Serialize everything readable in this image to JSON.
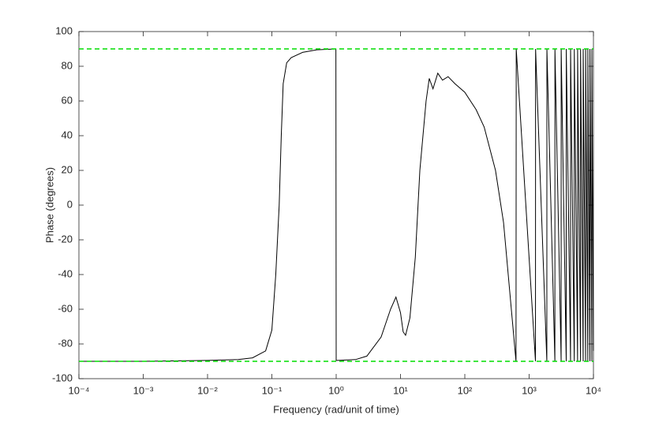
{
  "chart_data": {
    "type": "line",
    "xlabel": "Frequency (rad/unit of time)",
    "ylabel": "Phase (degrees)",
    "xscale": "log",
    "xlim": [
      0.0001,
      10000
    ],
    "xticks": [
      {
        "value": 0.0001,
        "label": "10⁻⁴"
      },
      {
        "value": 0.001,
        "label": "10⁻³"
      },
      {
        "value": 0.01,
        "label": "10⁻²"
      },
      {
        "value": 0.1,
        "label": "10⁻¹"
      },
      {
        "value": 1,
        "label": "10⁰"
      },
      {
        "value": 10,
        "label": "10¹"
      },
      {
        "value": 100,
        "label": "10²"
      },
      {
        "value": 1000,
        "label": "10³"
      },
      {
        "value": 10000,
        "label": "10⁴"
      }
    ],
    "ylim": [
      -100,
      100
    ],
    "yticks": [
      -100,
      -80,
      -60,
      -40,
      -20,
      0,
      20,
      40,
      60,
      80,
      100
    ],
    "grid": false,
    "series": [
      {
        "color": "#000000",
        "dash": false,
        "x": [
          0.0001,
          0.001,
          0.01,
          0.03,
          0.05,
          0.08,
          0.1,
          0.115,
          0.13,
          0.14,
          0.15,
          0.17,
          0.2,
          0.3,
          0.5,
          0.99,
          1.0,
          1.05,
          2,
          3,
          5,
          7,
          8.5,
          10,
          11,
          12,
          14,
          17,
          20,
          25,
          28,
          32,
          38,
          45,
          55,
          70,
          100,
          150,
          200,
          300,
          400,
          500,
          625,
          630,
          1255,
          1260,
          1885,
          1890,
          2515,
          2520,
          3145,
          3150,
          3775,
          3780,
          4405,
          4410,
          5035,
          5040,
          5665,
          5670,
          6295,
          6300,
          6925,
          6930,
          7555,
          7560,
          8185,
          8190,
          8815,
          8820,
          9445,
          9450,
          10000
        ],
        "values": [
          -90,
          -90,
          -89.5,
          -89,
          -88,
          -84,
          -72,
          -40,
          0,
          40,
          70,
          82,
          85,
          88,
          89.5,
          90,
          -89.5,
          -89.5,
          -89,
          -87,
          -76,
          -60,
          -53,
          -62,
          -73,
          -75,
          -65,
          -30,
          20,
          60,
          73,
          67,
          76,
          72,
          74,
          70,
          65,
          55,
          45,
          20,
          -10,
          -50,
          -90,
          90,
          -90,
          90,
          -90,
          90,
          -90,
          90,
          -90,
          90,
          -90,
          90,
          -90,
          90,
          -90,
          90,
          -90,
          90,
          -90,
          90,
          -90,
          90,
          -90,
          90,
          -90,
          90,
          -90,
          90,
          -90,
          90,
          -84
        ]
      },
      {
        "color": "#00dd00",
        "dash": true,
        "x": [
          0.0001,
          10000
        ],
        "values": [
          90,
          90
        ]
      },
      {
        "color": "#00dd00",
        "dash": true,
        "x": [
          0.0001,
          10000
        ],
        "values": [
          -90,
          -90
        ]
      }
    ]
  }
}
